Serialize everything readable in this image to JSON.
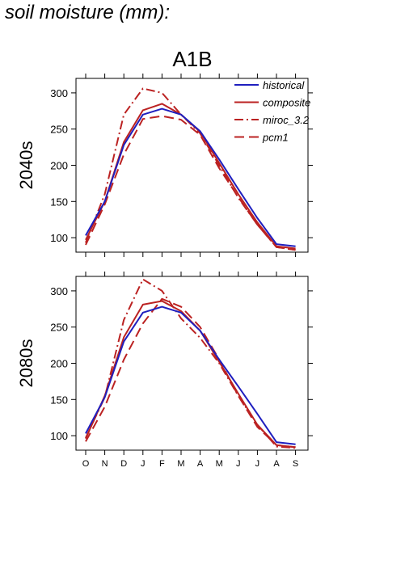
{
  "title": "soil moisture (mm):",
  "scenario": "A1B",
  "colors": {
    "historical": "#1f1fbf",
    "composite": "#bb2222",
    "miroc_3.2": "#bb2222",
    "pcm1": "#bb2222"
  },
  "legend": [
    {
      "name": "historical",
      "style": "solid",
      "color": "#1f1fbf"
    },
    {
      "name": "composite",
      "style": "solid",
      "color": "#bb2222"
    },
    {
      "name": "miroc_3.2",
      "style": "dashdot",
      "color": "#bb2222"
    },
    {
      "name": "pcm1",
      "style": "dashed",
      "color": "#bb2222"
    }
  ],
  "chart_data": [
    {
      "type": "line",
      "row_label": "2040s",
      "categories": [
        "O",
        "N",
        "D",
        "J",
        "F",
        "M",
        "A",
        "M",
        "J",
        "J",
        "A",
        "S"
      ],
      "yticks": [
        100,
        150,
        200,
        250,
        300
      ],
      "ylim": [
        80,
        320
      ],
      "legend_position": "top-right",
      "series": [
        {
          "name": "historical",
          "values": [
            103,
            150,
            228,
            270,
            278,
            270,
            247,
            208,
            167,
            127,
            91,
            88
          ]
        },
        {
          "name": "composite",
          "values": [
            97,
            150,
            232,
            276,
            285,
            270,
            246,
            203,
            160,
            121,
            88,
            85
          ]
        },
        {
          "name": "miroc_3.2",
          "values": [
            93,
            160,
            270,
            306,
            300,
            270,
            244,
            200,
            155,
            118,
            87,
            83
          ]
        },
        {
          "name": "pcm1",
          "values": [
            90,
            146,
            215,
            264,
            268,
            263,
            242,
            196,
            156,
            118,
            87,
            83
          ]
        }
      ]
    },
    {
      "type": "line",
      "row_label": "2080s",
      "categories": [
        "O",
        "N",
        "D",
        "J",
        "F",
        "M",
        "A",
        "M",
        "J",
        "J",
        "A",
        "S"
      ],
      "yticks": [
        100,
        150,
        200,
        250,
        300
      ],
      "ylim": [
        80,
        320
      ],
      "series": [
        {
          "name": "historical",
          "values": [
            103,
            153,
            230,
            270,
            278,
            270,
            245,
            205,
            168,
            130,
            91,
            88
          ]
        },
        {
          "name": "composite",
          "values": [
            96,
            155,
            236,
            281,
            286,
            272,
            245,
            202,
            158,
            115,
            87,
            84
          ]
        },
        {
          "name": "miroc_3.2",
          "values": [
            97,
            153,
            260,
            316,
            300,
            262,
            235,
            200,
            155,
            115,
            85,
            83
          ]
        },
        {
          "name": "pcm1",
          "values": [
            92,
            140,
            205,
            255,
            289,
            278,
            250,
            205,
            155,
            112,
            87,
            84
          ]
        }
      ]
    }
  ]
}
